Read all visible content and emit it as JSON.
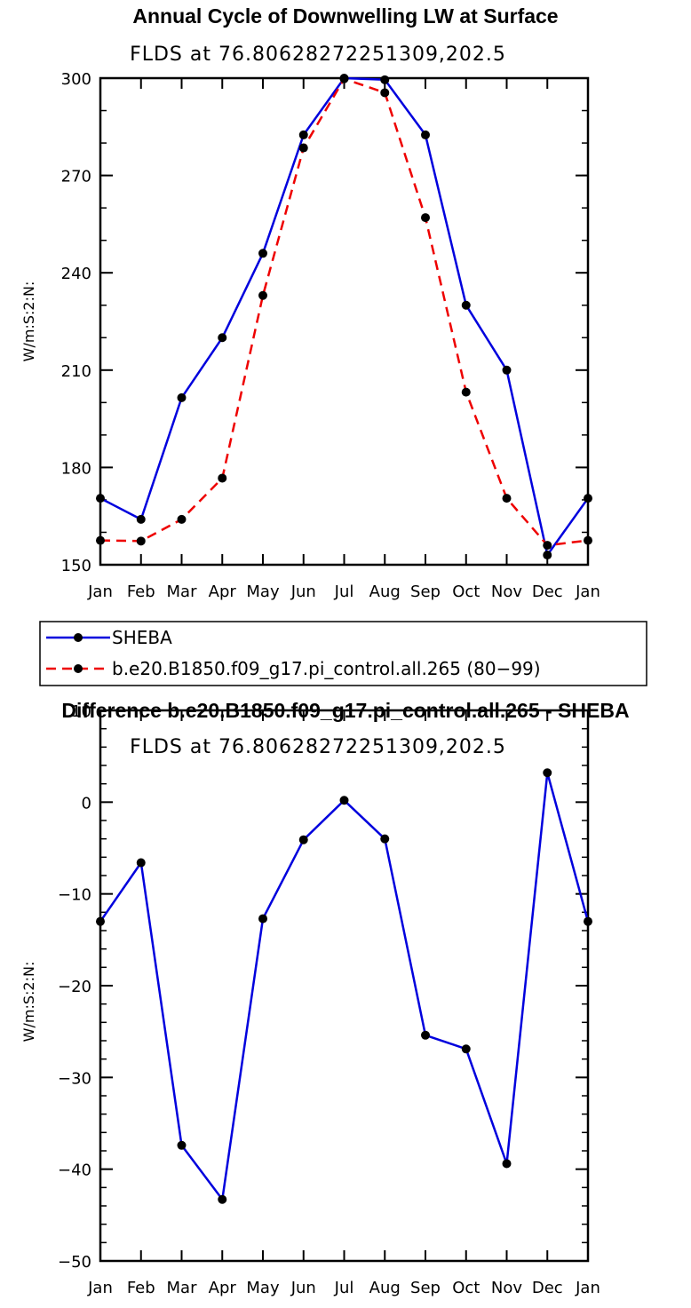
{
  "chart_data": [
    {
      "type": "line",
      "title": "Annual Cycle of Downwelling LW at Surface",
      "subtitle": "FLDS at 76.80628272251309,202.5",
      "xlabel": "",
      "ylabel": "W/m:S:2:N:",
      "categories": [
        "Jan",
        "Feb",
        "Mar",
        "Apr",
        "May",
        "Jun",
        "Jul",
        "Aug",
        "Sep",
        "Oct",
        "Nov",
        "Dec",
        "Jan"
      ],
      "ylim": [
        150,
        300
      ],
      "yticks": [
        150,
        180,
        210,
        240,
        270,
        300
      ],
      "grid": false,
      "legend": "bottom",
      "series": [
        {
          "name": "SHEBA",
          "color": "#0000dd",
          "dash": "solid",
          "values": [
            170.5,
            164,
            201.5,
            220,
            246,
            282.5,
            300,
            299.5,
            282.5,
            230,
            210,
            153,
            170.5
          ]
        },
        {
          "name": "b.e20.B1850.f09_g17.pi_control.all.265 (80−99)",
          "color": "#ee0000",
          "dash": "dashed",
          "values": [
            157.5,
            157.3,
            164,
            176.7,
            233,
            278.5,
            299.8,
            295.5,
            257,
            203.2,
            170.5,
            156,
            157.5
          ]
        }
      ]
    },
    {
      "type": "line",
      "title": "Difference b.e20.B1850.f09_g17.pi_control.all.265 - SHEBA",
      "subtitle": "FLDS at 76.80628272251309,202.5",
      "xlabel": "",
      "ylabel": "W/m:S:2:N:",
      "categories": [
        "Jan",
        "Feb",
        "Mar",
        "Apr",
        "May",
        "Jun",
        "Jul",
        "Aug",
        "Sep",
        "Oct",
        "Nov",
        "Dec",
        "Jan"
      ],
      "ylim": [
        -50,
        10
      ],
      "yticks": [
        -50,
        -40,
        -30,
        -20,
        -10,
        0,
        10
      ],
      "grid": false,
      "series": [
        {
          "color": "#0000dd",
          "dash": "solid",
          "values": [
            -13,
            -6.6,
            -37.4,
            -43.3,
            -12.7,
            -4.1,
            0.2,
            -4.0,
            -25.4,
            -26.9,
            -39.4,
            3.2,
            -13
          ]
        }
      ]
    }
  ]
}
